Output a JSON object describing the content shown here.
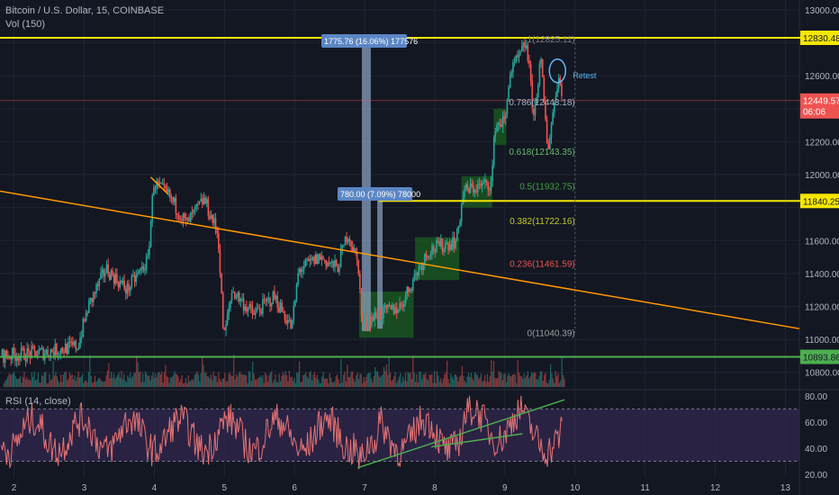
{
  "header": {
    "title": "Bitcoin / U.S. Dollar, 15, COINBASE",
    "volume_label": "Vol (150)"
  },
  "rsi_header": {
    "label": "RSI (14, close)"
  },
  "colors": {
    "background": "#131722",
    "grid": "#1f2433",
    "up": "#26a69a",
    "down": "#ef5350",
    "yellow": "#f5e600",
    "green_line": "#4caf50",
    "orange": "#ff9800",
    "box_green": "#1b5e20",
    "rsi_line": "#e57373",
    "rsi_band": "#3a2a5a",
    "measure": "#8ea7c6",
    "axis_text": "#b2b5be"
  },
  "chart_data": {
    "type": "candlestick",
    "symbol": "Bitcoin / U.S. Dollar, 15, COINBASE",
    "price_axis": {
      "ticks": [
        10800,
        11000,
        11200,
        11400,
        11600,
        11800,
        12000,
        12200,
        12400,
        12600,
        12800,
        13000
      ],
      "tick_labels": [
        "10800.00",
        "11000.00",
        "11200.00",
        "11400.00",
        "11600.00",
        "11800.00",
        "12000.00",
        "12200.00",
        "12400.00",
        "12600.00",
        "12800.00",
        "13000.00"
      ],
      "range": [
        10700,
        13060
      ]
    },
    "time_axis": {
      "range": [
        1.8,
        13.2
      ],
      "ticks": [
        2,
        3,
        4,
        5,
        6,
        7,
        8,
        9,
        10,
        11,
        12,
        13
      ],
      "tick_labels": [
        "2",
        "3",
        "4",
        "5",
        "6",
        "7",
        "8",
        "9",
        "10",
        "11",
        "12",
        "13"
      ]
    },
    "price_series_path": [
      [
        1.8,
        10900
      ],
      [
        2.4,
        10920
      ],
      [
        2.9,
        10960
      ],
      [
        3.05,
        11200
      ],
      [
        3.3,
        11430
      ],
      [
        3.6,
        11300
      ],
      [
        3.9,
        11480
      ],
      [
        3.98,
        11950
      ],
      [
        4.2,
        11870
      ],
      [
        4.45,
        11700
      ],
      [
        4.7,
        11850
      ],
      [
        4.9,
        11640
      ],
      [
        4.98,
        11000
      ],
      [
        5.1,
        11300
      ],
      [
        5.4,
        11150
      ],
      [
        5.7,
        11260
      ],
      [
        5.95,
        11070
      ],
      [
        6.05,
        11420
      ],
      [
        6.35,
        11500
      ],
      [
        6.6,
        11430
      ],
      [
        6.75,
        11650
      ],
      [
        6.9,
        11450
      ],
      [
        6.95,
        11100
      ],
      [
        7.2,
        11150
      ],
      [
        7.5,
        11200
      ],
      [
        7.7,
        11380
      ],
      [
        7.9,
        11540
      ],
      [
        8.3,
        11600
      ],
      [
        8.4,
        11900
      ],
      [
        8.8,
        11950
      ],
      [
        8.85,
        12300
      ],
      [
        9.0,
        12330
      ],
      [
        9.05,
        12600
      ],
      [
        9.3,
        12800
      ],
      [
        9.4,
        12350
      ],
      [
        9.5,
        12700
      ],
      [
        9.6,
        12150
      ],
      [
        9.7,
        12450
      ],
      [
        9.75,
        12600
      ],
      [
        9.82,
        12480
      ]
    ],
    "rsi": {
      "label": "RSI (14, close)",
      "ticks": [
        20,
        40,
        60,
        80
      ],
      "tick_labels": [
        "20.00",
        "40.00",
        "60.00",
        "80.00"
      ],
      "range": [
        18,
        84
      ],
      "bands": [
        30,
        70
      ]
    },
    "horizontal_levels": [
      {
        "price": 12830.48,
        "label": "12830.48",
        "color": "yellow"
      },
      {
        "price": 11840.25,
        "label": "11840.25",
        "color": "yellow",
        "x_start": 7.2
      },
      {
        "price": 10893.86,
        "label": "10893.86",
        "color": "green_line"
      }
    ],
    "current_price": {
      "price": 12449.57,
      "label": "12449.57",
      "countdown": "06:06"
    },
    "fibonacci": [
      {
        "label": "1(12825.11)",
        "price": 12825.11,
        "color": "#787b86"
      },
      {
        "label": "0.786(12443.18)",
        "price": 12443.18,
        "color": "#9fb3c8"
      },
      {
        "label": "0.618(12143.35)",
        "price": 12143.35,
        "color": "#66bb6a"
      },
      {
        "label": "0.5(11932.75)",
        "price": 11932.75,
        "color": "#43a047"
      },
      {
        "label": "0.382(11722.16)",
        "price": 11722.16,
        "color": "#c0ca33"
      },
      {
        "label": "0.236(11461.59)",
        "price": 11461.59,
        "color": "#ef5350"
      },
      {
        "label": "0(11040.39)",
        "price": 11040.39,
        "color": "#9e9e9e"
      }
    ],
    "measurements": [
      {
        "label": "1775.76 (16.06%) 177576"
      },
      {
        "label": "780.00 (7.09%) 78000"
      }
    ],
    "annotations": [
      {
        "label": "Retest"
      }
    ]
  }
}
